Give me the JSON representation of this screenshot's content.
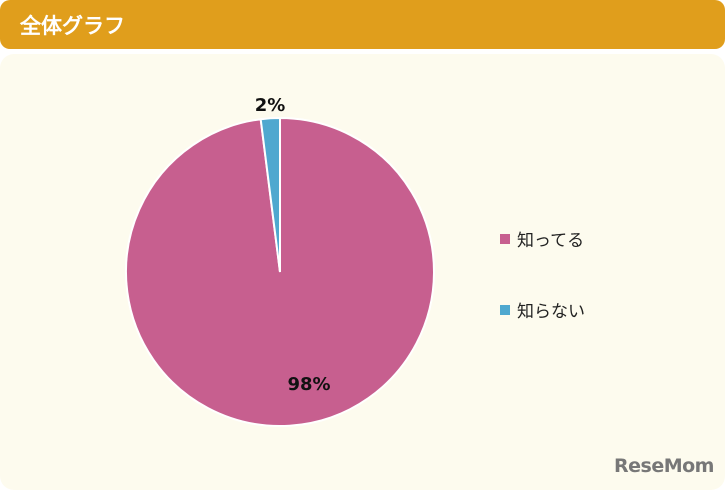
{
  "header": {
    "title": "全体グラフ"
  },
  "chart_data": {
    "type": "pie",
    "categories": [
      "知ってる",
      "知らない"
    ],
    "values": [
      98,
      2
    ],
    "data_labels": [
      "98%",
      "2%"
    ],
    "colors": [
      "#c75f8f",
      "#4fa8cf"
    ],
    "legend_position": "right"
  },
  "logo": "ReseMom"
}
